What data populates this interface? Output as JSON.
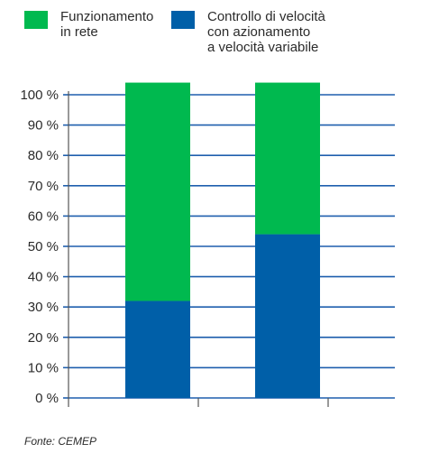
{
  "legend": [
    {
      "label": "Funzionamento\nin rete",
      "color": "#00b94f"
    },
    {
      "label": "Controllo di velocità\ncon azionamento\na velocità variabile",
      "color": "#005fa8"
    }
  ],
  "source": "Fonte: CEMEP",
  "colors": {
    "grid": "#1f5fae",
    "axis": "#555555",
    "tick_text": "#2b2b2b"
  },
  "chart_data": {
    "type": "bar",
    "stacked": true,
    "categories": [
      "",
      ""
    ],
    "series": [
      {
        "name": "Controllo di velocità con azionamento a velocità variabile",
        "color": "#005fa8",
        "values": [
          32,
          54
        ]
      },
      {
        "name": "Funzionamento in rete",
        "color": "#00b94f",
        "values": [
          72,
          50
        ]
      }
    ],
    "yticks": [
      "0 %",
      "10 %",
      "20 %",
      "30 %",
      "40 %",
      "50 %",
      "60 %",
      "70 %",
      "80 %",
      "90 %",
      "100 %"
    ],
    "ylim": [
      0,
      100
    ],
    "grid": true,
    "legend_position": "top"
  }
}
